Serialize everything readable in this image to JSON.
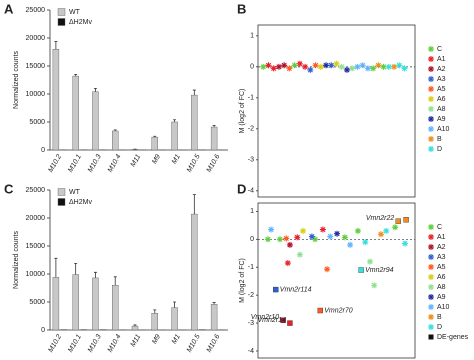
{
  "chart_data": [
    {
      "type": "bar",
      "panel": "A",
      "ylabel": "Normalized counts",
      "categories": [
        "M10.2",
        "M10.1",
        "M10.3",
        "M10.4",
        "M11",
        "M9",
        "M1",
        "M10.5",
        "M10.6"
      ],
      "ylim": [
        0,
        25000
      ],
      "yticks": [
        0,
        5000,
        10000,
        15000,
        20000,
        25000
      ],
      "legend": "upper-left",
      "series": [
        {
          "name": "WT",
          "color": "#c8c8c8",
          "values": [
            18000,
            13200,
            10400,
            3400,
            100,
            2300,
            5000,
            9800,
            4100
          ],
          "errors": [
            1400,
            300,
            600,
            200,
            50,
            150,
            400,
            900,
            300
          ]
        },
        {
          "name": "ΔH2Mv",
          "color": "#111111",
          "values": [
            60,
            60,
            60,
            40,
            20,
            30,
            40,
            60,
            40
          ],
          "errors": [
            0,
            0,
            0,
            0,
            0,
            0,
            0,
            0,
            0
          ]
        }
      ]
    },
    {
      "type": "scatter",
      "panel": "B",
      "ylabel": "M (log2 of FC)",
      "xlim": [
        0,
        30
      ],
      "ylim": [
        -4.2,
        1.35
      ],
      "yticks": [
        1,
        0,
        -1,
        -2,
        -3,
        -4
      ],
      "zero_line": true,
      "legend": "right",
      "series": [
        {
          "name": "C",
          "color": "#5ccf3a",
          "x": [
            1,
            7,
            22,
            24
          ],
          "values": [
            0,
            0.05,
            -0.05,
            0
          ]
        },
        {
          "name": "A1",
          "color": "#e8202a",
          "x": [
            2,
            3,
            8,
            9
          ],
          "values": [
            0.05,
            -0.05,
            0.1,
            0
          ]
        },
        {
          "name": "A2",
          "color": "#b0102a",
          "x": [
            4,
            5
          ],
          "values": [
            0,
            0.05
          ]
        },
        {
          "name": "A3",
          "color": "#2f5fd0",
          "x": [
            10,
            14
          ],
          "values": [
            -0.1,
            0.05
          ]
        },
        {
          "name": "A5",
          "color": "#ff5a1e",
          "x": [
            6,
            11
          ],
          "values": [
            -0.05,
            0.05
          ]
        },
        {
          "name": "A6",
          "color": "#d6cf10",
          "x": [
            12,
            15
          ],
          "values": [
            0,
            0.1
          ]
        },
        {
          "name": "A8",
          "color": "#8fe08f",
          "x": [
            16,
            18
          ],
          "values": [
            0,
            -0.05
          ]
        },
        {
          "name": "A9",
          "color": "#1e2aa0",
          "x": [
            13,
            17
          ],
          "values": [
            0.05,
            -0.1
          ]
        },
        {
          "name": "A10",
          "color": "#5fb4ff",
          "x": [
            19,
            20,
            21
          ],
          "values": [
            0,
            0.05,
            -0.05
          ]
        },
        {
          "name": "B",
          "color": "#f08c1e",
          "x": [
            23,
            26
          ],
          "values": [
            0.05,
            0
          ]
        },
        {
          "name": "D",
          "color": "#36dede",
          "x": [
            25,
            27,
            28
          ],
          "values": [
            0,
            0.05,
            -0.05
          ]
        }
      ]
    },
    {
      "type": "bar",
      "panel": "C",
      "ylabel": "Normalized counts",
      "categories": [
        "M10.2",
        "M10.1",
        "M10.3",
        "M10.4",
        "M11",
        "M9",
        "M1",
        "M10.5",
        "M10.6"
      ],
      "ylim": [
        0,
        25000
      ],
      "yticks": [
        0,
        5000,
        10000,
        15000,
        20000,
        25000
      ],
      "legend": "upper-left",
      "series": [
        {
          "name": "WT",
          "color": "#c8c8c8",
          "values": [
            9400,
            9900,
            9300,
            8000,
            700,
            3000,
            4000,
            20700,
            4600
          ],
          "errors": [
            3400,
            2000,
            1000,
            1500,
            200,
            600,
            1000,
            3500,
            300
          ]
        },
        {
          "name": "ΔH2Mv",
          "color": "#111111",
          "values": [
            80,
            80,
            80,
            60,
            20,
            40,
            50,
            80,
            60
          ],
          "errors": [
            0,
            0,
            0,
            0,
            0,
            0,
            0,
            0,
            0
          ]
        }
      ]
    },
    {
      "type": "scatter",
      "panel": "D",
      "ylabel": "M (log2 of FC)",
      "xlim": [
        0,
        30
      ],
      "ylim": [
        -4.25,
        1.3
      ],
      "yticks": [
        1,
        0,
        -1,
        -2,
        -3,
        -4
      ],
      "zero_line": true,
      "legend": "right",
      "series": [
        {
          "name": "C",
          "color": "#5ccf3a",
          "x": [
            1.9,
            4.2,
            10.9,
            16.6,
            19.1,
            26.2
          ],
          "values": [
            0,
            0,
            0,
            0.07,
            0.3,
            0.43
          ]
        },
        {
          "name": "A1",
          "color": "#e8202a",
          "x": [
            7.5,
            5.7,
            12.4
          ],
          "values": [
            0.07,
            -0.85,
            0.35
          ]
        },
        {
          "name": "A2",
          "color": "#b0102a",
          "x": [
            6.1
          ],
          "values": [
            -0.2
          ]
        },
        {
          "name": "A3",
          "color": "#2f5fd0",
          "x": [
            10.3
          ],
          "values": [
            0.1
          ]
        },
        {
          "name": "A5",
          "color": "#ff5a1e",
          "x": [
            5.4,
            13.2
          ],
          "values": [
            0.03,
            -1.07
          ]
        },
        {
          "name": "A6",
          "color": "#d6cf10",
          "x": [
            8.6
          ],
          "values": [
            0.3
          ]
        },
        {
          "name": "A8",
          "color": "#8fe08f",
          "x": [
            8,
            21.4,
            22.2
          ],
          "values": [
            -0.55,
            -0.8,
            -1.65
          ]
        },
        {
          "name": "A9",
          "color": "#1e2aa0",
          "x": [
            15.1
          ],
          "values": [
            0.2
          ]
        },
        {
          "name": "A10",
          "color": "#5fb4ff",
          "x": [
            2.5,
            13.8,
            17.6
          ],
          "values": [
            0.35,
            0.1,
            -0.2
          ]
        },
        {
          "name": "B",
          "color": "#f08c1e",
          "x": [
            23.5
          ],
          "values": [
            0.18
          ]
        },
        {
          "name": "D",
          "color": "#36dede",
          "x": [
            20.5,
            24.5,
            28.1
          ],
          "values": [
            -0.1,
            0.3,
            -0.15
          ]
        },
        {
          "name": "DE-genes",
          "color": "#111111",
          "marker": "square",
          "x": [
            26.8,
            28.3,
            19.7,
            3.4,
            11.9,
            4.8,
            6.1
          ],
          "values": [
            0.65,
            0.7,
            -1.1,
            -1.8,
            -2.55,
            -2.9,
            -3.0
          ],
          "point_colors": [
            "#f08c1e",
            "#f08c1e",
            "#36dede",
            "#2f5fd0",
            "#ff5a1e",
            "#b0102a",
            "#e8202a"
          ],
          "labels": [
            "Vmn2r22",
            null,
            "Vmn2r94",
            "Vmn2r114",
            "Vmn2r70",
            "Vmn2r10",
            "Vmn2r14"
          ]
        }
      ]
    }
  ]
}
